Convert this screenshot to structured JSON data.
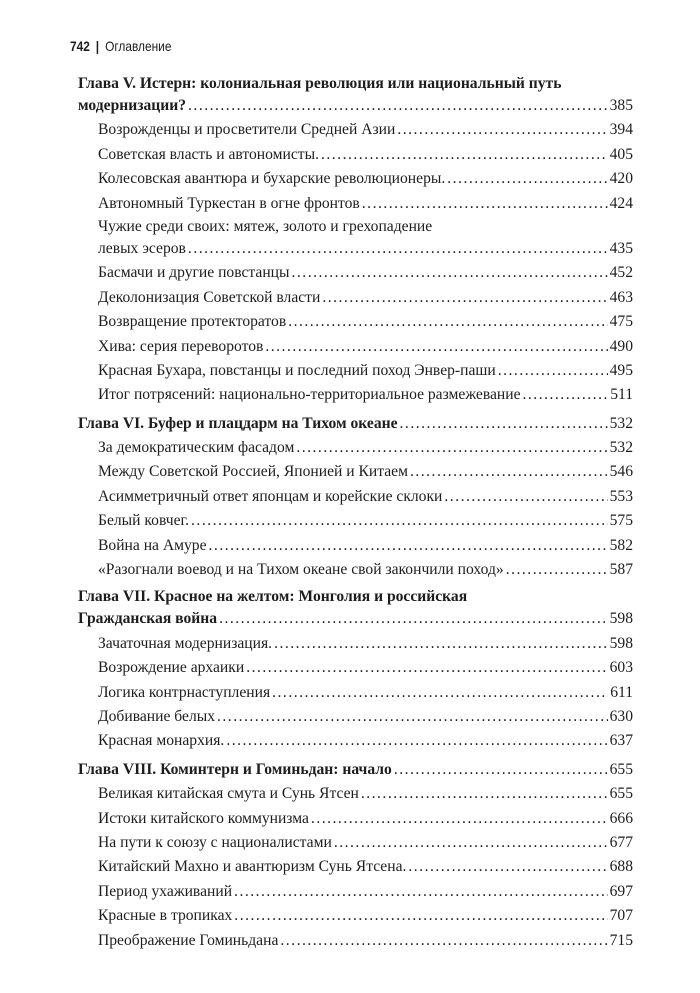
{
  "header": {
    "page_number": "742",
    "separator": "|",
    "section_title": "Оглавление"
  },
  "toc": [
    {
      "type": "chapter",
      "lines": [
        "Глава V. Истерн: колониальная революция или национальный путь",
        "модернизации?"
      ],
      "page": "385"
    },
    {
      "type": "sub",
      "lines": [
        "Возрожденцы и просветители Средней Азии"
      ],
      "page": "394"
    },
    {
      "type": "sub",
      "lines": [
        "Советская власть и автономисты."
      ],
      "page": "405"
    },
    {
      "type": "sub",
      "lines": [
        "Колесовская авантюра и бухарские революционеры."
      ],
      "page": "420"
    },
    {
      "type": "sub",
      "lines": [
        "Автономный Туркестан в огне фронтов"
      ],
      "page": "424"
    },
    {
      "type": "sub",
      "lines": [
        "Чужие среди своих: мятеж, золото и грехопадение",
        "левых эсеров"
      ],
      "page": "435"
    },
    {
      "type": "sub",
      "lines": [
        "Басмачи и другие повстанцы"
      ],
      "page": "452"
    },
    {
      "type": "sub",
      "lines": [
        "Деколонизация Советской власти"
      ],
      "page": "463"
    },
    {
      "type": "sub",
      "lines": [
        "Возвращение протекторатов"
      ],
      "page": "475"
    },
    {
      "type": "sub",
      "lines": [
        "Хива: серия переворотов"
      ],
      "page": "490"
    },
    {
      "type": "sub",
      "lines": [
        "Красная Бухара, повстанцы и последний поход Энвер-паши"
      ],
      "page": "495"
    },
    {
      "type": "sub",
      "lines": [
        "Итог потрясений: национально-территориальное размежевание"
      ],
      "page": "511"
    },
    {
      "type": "chapter",
      "lines": [
        "Глава VI. Буфер и плацдарм на Тихом океане"
      ],
      "page": "532"
    },
    {
      "type": "sub",
      "lines": [
        "За демократическим фасадом"
      ],
      "page": "532"
    },
    {
      "type": "sub",
      "lines": [
        "Между Советской Россией, Японией и Китаем"
      ],
      "page": "546"
    },
    {
      "type": "sub",
      "lines": [
        "Асимметричный ответ японцам и корейские склоки"
      ],
      "page": "553"
    },
    {
      "type": "sub",
      "lines": [
        "Белый ковчег."
      ],
      "page": "575"
    },
    {
      "type": "sub",
      "lines": [
        "Война на Амуре"
      ],
      "page": "582"
    },
    {
      "type": "sub",
      "lines": [
        "«Разогнали воевод и на Тихом океане свой закончили поход»"
      ],
      "page": "587"
    },
    {
      "type": "chapter",
      "lines": [
        "Глава VII. Красное на желтом: Монголия и российская",
        "Гражданская война"
      ],
      "page": "598"
    },
    {
      "type": "sub",
      "lines": [
        "Зачаточная модернизация."
      ],
      "page": "598"
    },
    {
      "type": "sub",
      "lines": [
        "Возрождение архаики"
      ],
      "page": "603"
    },
    {
      "type": "sub",
      "lines": [
        "Логика контрнаступления"
      ],
      "page": "611"
    },
    {
      "type": "sub",
      "lines": [
        "Добивание белых"
      ],
      "page": "630"
    },
    {
      "type": "sub",
      "lines": [
        "Красная монархия."
      ],
      "page": "637"
    },
    {
      "type": "chapter",
      "lines": [
        "Глава VIII. Коминтерн и Гоминьдан: начало"
      ],
      "page": "655"
    },
    {
      "type": "sub",
      "lines": [
        "Великая китайская смута и Сунь Ятсен"
      ],
      "page": "655"
    },
    {
      "type": "sub",
      "lines": [
        "Истоки китайского коммунизма"
      ],
      "page": "666"
    },
    {
      "type": "sub",
      "lines": [
        "На пути к союзу с националистами"
      ],
      "page": "677"
    },
    {
      "type": "sub",
      "lines": [
        "Китайский Махно и авантюризм Сунь Ятсена."
      ],
      "page": "688"
    },
    {
      "type": "sub",
      "lines": [
        "Период ухаживаний"
      ],
      "page": "697"
    },
    {
      "type": "sub",
      "lines": [
        "Красные в тропиках"
      ],
      "page": "707"
    },
    {
      "type": "sub",
      "lines": [
        "Преображение Гоминьдана"
      ],
      "page": "715"
    }
  ]
}
